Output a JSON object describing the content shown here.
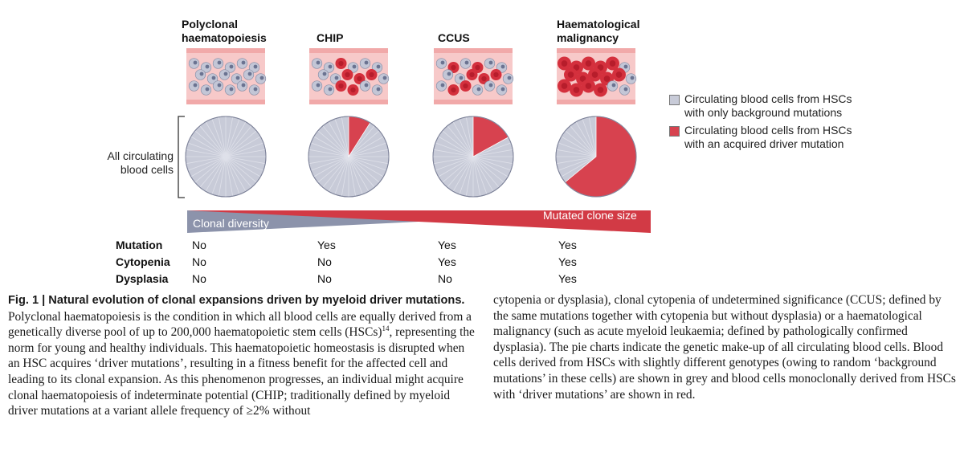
{
  "figure": {
    "columns": [
      {
        "title_line1": "Polyclonal",
        "title_line2": "haematopoiesis",
        "red_fraction": 0
      },
      {
        "title_line1": "CHIP",
        "title_line2": "",
        "red_fraction": 0.09
      },
      {
        "title_line1": "CCUS",
        "title_line2": "",
        "red_fraction": 0.17
      },
      {
        "title_line1": "Haematological",
        "title_line2": "malignancy",
        "red_fraction": 0.64
      }
    ],
    "side_label_line1": "All circulating",
    "side_label_line2": "blood cells",
    "legend": [
      {
        "line1": "Circulating blood cells from HSCs",
        "line2": "with only background mutations",
        "color": "#c8cbd8"
      },
      {
        "line1": "Circulating blood cells from HSCs",
        "line2": "with an acquired driver mutation",
        "color": "#d7424f"
      }
    ],
    "bar": {
      "diversity_label": "Clonal diversity",
      "clone_label": "Mutated clone size",
      "diversity_color": "#8c93ab",
      "clone_color": "#d23a45"
    },
    "table": {
      "rows": [
        {
          "label": "Mutation",
          "values": [
            "No",
            "Yes",
            "Yes",
            "Yes"
          ]
        },
        {
          "label": "Cytopenia",
          "values": [
            "No",
            "No",
            "Yes",
            "Yes"
          ]
        },
        {
          "label": "Dysplasia",
          "values": [
            "No",
            "No",
            "No",
            "Yes"
          ]
        }
      ]
    },
    "colors": {
      "vessel_bg": "#f7c9c9",
      "vessel_wall": "#f1a9a9",
      "grey_cell": "#c3c6d6",
      "grey_nucleus": "#6b7391",
      "red_cell": "#d4303d",
      "red_center": "#b71d2b",
      "pie_grey": "#c8cbd8",
      "pie_red": "#d7424f"
    }
  },
  "caption": {
    "title": "Fig. 1 | Natural evolution of clonal expansions driven by myeloid driver mutations.",
    "left_part1": " Polyclonal haematopoiesis is the condition in which all blood cells are equally derived from a genetically diverse pool of up to 200,000 haematopoietic stem cells (HSCs)",
    "ref": "14",
    "left_part2": ", representing the norm for young and healthy individuals. This haematopoietic homeostasis is disrupted when an HSC acquires ‘driver mutations’, resulting in a fitness benefit for the affected cell and leading to its clonal expansion. As this phenomenon progresses, an individual might acquire clonal haematopoiesis of indeterminate potential (CHIP; traditionally defined by myeloid driver mutations at a variant allele frequency of ≥2% without",
    "right": "cytopenia or dysplasia), clonal cytopenia of undetermined significance (CCUS; defined by the same mutations together with cytopenia but without dysplasia) or a haematological malignancy (such as acute myeloid leukaemia; defined by pathologically confirmed dysplasia). The pie charts indicate the genetic make-up of all circulating blood cells. Blood cells derived from HSCs with slightly different genotypes (owing to random ‘background mutations’ in these cells) are shown in grey and blood cells monoclonally derived from HSCs with ‘driver mutations’ are shown in red."
  }
}
